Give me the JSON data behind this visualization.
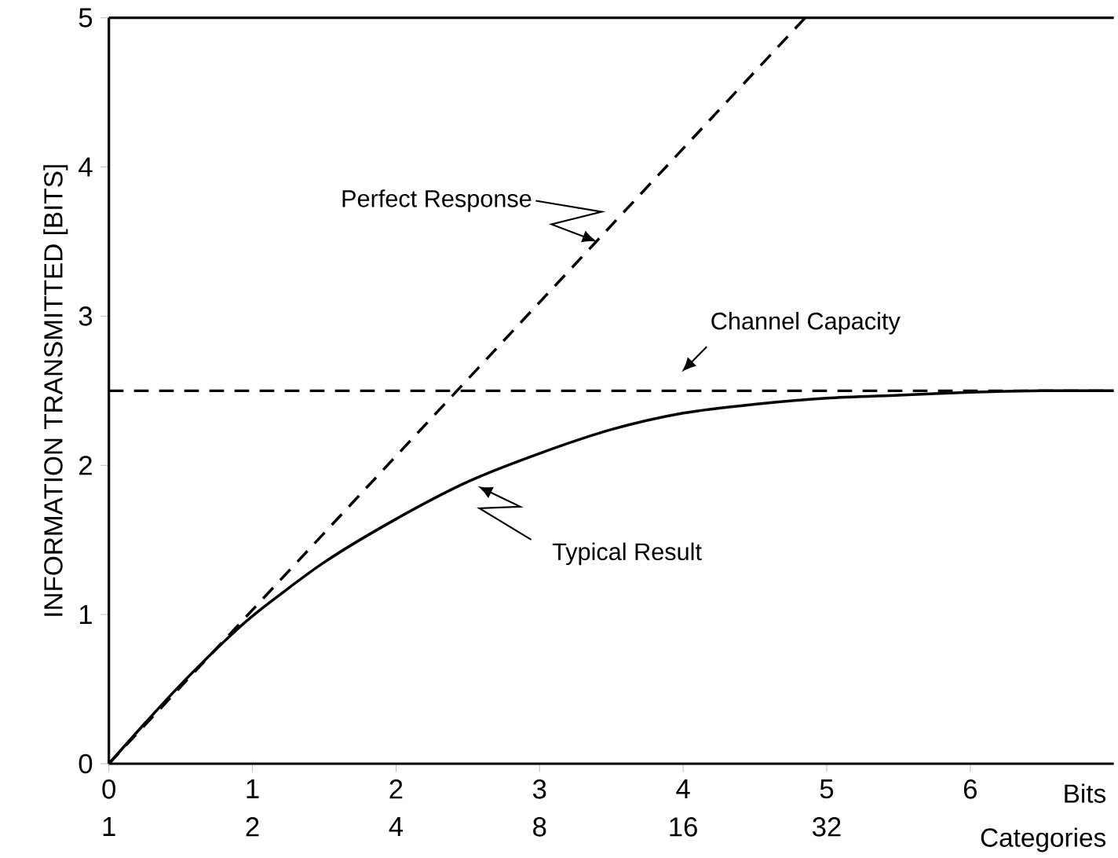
{
  "chart_data": {
    "type": "line",
    "ylabel": "INFORMATION TRANSMITTED [BITS]",
    "xlabel": "Bits",
    "x2label": "Categories",
    "xlim": [
      0,
      7
    ],
    "ylim": [
      0,
      5
    ],
    "xticks": [
      0,
      1,
      2,
      3,
      4,
      5,
      6
    ],
    "yticks": [
      0,
      1,
      2,
      3,
      4,
      5
    ],
    "x2lim": [
      1,
      128
    ],
    "x2ticks": [
      1,
      2,
      4,
      8,
      16,
      32
    ],
    "log": "x2",
    "series": [
      {
        "color": "#000000",
        "line_style": "dashed",
        "x": [
          0,
          4.85
        ],
        "values": [
          0,
          5
        ]
      },
      {
        "color": "#000000",
        "line_style": "solid",
        "x": [
          0,
          0.25,
          0.5,
          0.75,
          1,
          1.5,
          2,
          2.5,
          3,
          3.5,
          4,
          4.5,
          5,
          5.5,
          6,
          6.5,
          7
        ],
        "values": [
          0,
          0.27,
          0.53,
          0.77,
          0.99,
          1.35,
          1.64,
          1.89,
          2.08,
          2.24,
          2.35,
          2.41,
          2.45,
          2.47,
          2.49,
          2.5,
          2.5
        ]
      }
    ],
    "ref_lines": [
      {
        "axis": "y",
        "value": 2.5,
        "label": "Channel  Capacity",
        "color": "#000000",
        "line_style": "dashed"
      }
    ],
    "annotations": [
      {
        "text": "Perfect Response",
        "x": 3.4,
        "y": 3.5
      },
      {
        "text": "Typical Result",
        "x": 2.57,
        "y": 1.86
      }
    ]
  }
}
